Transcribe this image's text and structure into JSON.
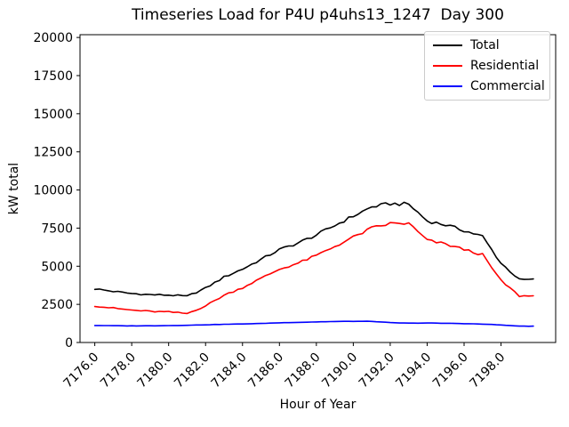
{
  "chart_data": {
    "type": "line",
    "title": "Timeseries Load for P4U p4uhs13_1247  Day 300",
    "xlabel": "Hour of Year",
    "ylabel": "kW total",
    "x_start_hour": 7176,
    "x_step_hours": 1,
    "xlim": [
      7175.2,
      7200.96
    ],
    "ylim": [
      0,
      20182
    ],
    "yticks": [
      0,
      2500,
      5000,
      7500,
      10000,
      12500,
      15000,
      17500,
      20000
    ],
    "xtick_labels": [
      "7176.0",
      "7178.0",
      "7180.0",
      "7182.0",
      "7184.0",
      "7186.0",
      "7188.0",
      "7190.0",
      "7192.0",
      "7194.0",
      "7196.0",
      "7198.0"
    ],
    "grid": false,
    "legend_position": "upper right",
    "series": [
      {
        "name": "Total",
        "color": "#000000",
        "values": [
          3520,
          3350,
          3210,
          3135,
          3110,
          3030,
          3560,
          4290,
          4815,
          5445,
          6090,
          6520,
          7050,
          7675,
          8290,
          8885,
          9100,
          9065,
          7975,
          7710,
          7340,
          6955,
          5200,
          4120
        ]
      },
      {
        "name": "Residential",
        "color": "#ff0000",
        "values": [
          2400,
          2250,
          2120,
          2040,
          2000,
          1900,
          2400,
          3100,
          3600,
          4200,
          4800,
          5200,
          5700,
          6300,
          6900,
          7500,
          7800,
          7800,
          6700,
          6450,
          6100,
          5750,
          4050,
          3050
        ]
      },
      {
        "name": "Commercial",
        "color": "#0000ff",
        "values": [
          1120,
          1100,
          1090,
          1095,
          1110,
          1130,
          1160,
          1190,
          1215,
          1245,
          1290,
          1320,
          1350,
          1375,
          1390,
          1385,
          1300,
          1265,
          1275,
          1260,
          1240,
          1205,
          1150,
          1070
        ]
      }
    ]
  }
}
